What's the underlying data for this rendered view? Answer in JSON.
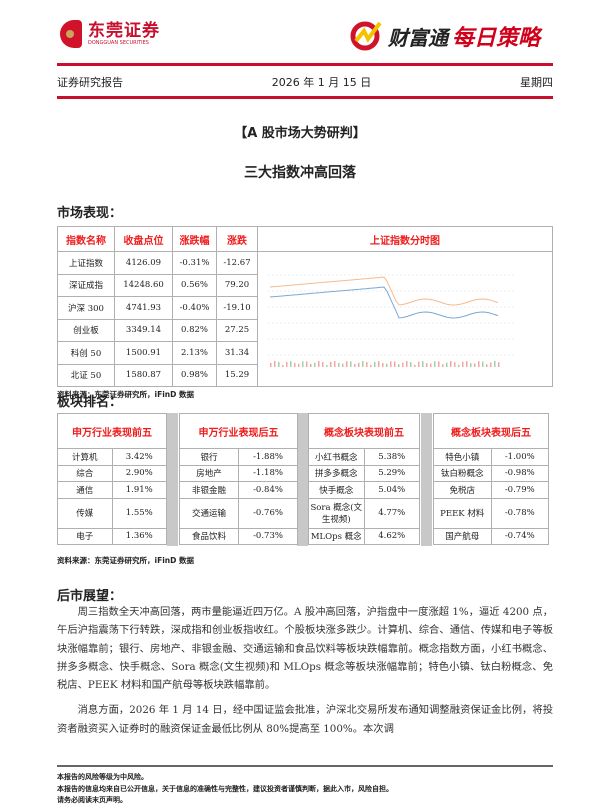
{
  "header": {
    "broker_name": "东莞证券",
    "broker_name_en": "DONGGUAN SECURITIES",
    "brand": "财富通",
    "product": "每日策略",
    "report_type": "证券研究报告",
    "date": "2026 年 1 月 15 日",
    "weekday": "星期四"
  },
  "title": "【A 股市场大势研判】",
  "subtitle": "三大指数冲高回落",
  "market": {
    "heading": "市场表现：",
    "columns": [
      "指数名称",
      "收盘点位",
      "涨跌幅",
      "涨跌"
    ],
    "chart_title": "上证指数分时图",
    "rows": [
      [
        "上证指数",
        "4126.09",
        "-0.31%",
        "-12.67"
      ],
      [
        "深证成指",
        "14248.60",
        "0.56%",
        "79.20"
      ],
      [
        "沪深 300",
        "4741.93",
        "-0.40%",
        "-19.10"
      ],
      [
        "创业板",
        "3349.14",
        "0.82%",
        "27.25"
      ],
      [
        "科创 50",
        "1500.91",
        "2.13%",
        "31.34"
      ],
      [
        "北证 50",
        "1580.87",
        "0.98%",
        "15.29"
      ]
    ],
    "source": "资料来源：东莞证券研究所，iFinD 数据"
  },
  "sectors": {
    "heading": "板块排名：",
    "source": "资料来源：东莞证券研究所，iFinD 数据",
    "tables": [
      {
        "title": "申万行业表现前五",
        "rows": [
          [
            "计算机",
            "3.42%"
          ],
          [
            "综合",
            "2.90%"
          ],
          [
            "通信",
            "1.91%"
          ],
          [
            "传媒",
            "1.55%"
          ],
          [
            "电子",
            "1.36%"
          ]
        ]
      },
      {
        "title": "申万行业表现后五",
        "rows": [
          [
            "银行",
            "-1.88%"
          ],
          [
            "房地产",
            "-1.18%"
          ],
          [
            "非银金融",
            "-0.84%"
          ],
          [
            "交通运输",
            "-0.76%"
          ],
          [
            "食品饮料",
            "-0.73%"
          ]
        ]
      },
      {
        "title": "概念板块表现前五",
        "rows": [
          [
            "小红书概念",
            "5.38%"
          ],
          [
            "拼多多概念",
            "5.29%"
          ],
          [
            "快手概念",
            "5.04%"
          ],
          [
            "Sora 概念(文生视频)",
            "4.77%"
          ],
          [
            "MLOps 概念",
            "4.62%"
          ]
        ]
      },
      {
        "title": "概念板块表现后五",
        "rows": [
          [
            "特色小镇",
            "-1.00%"
          ],
          [
            "钛白粉概念",
            "-0.98%"
          ],
          [
            "免税店",
            "-0.79%"
          ],
          [
            "PEEK 材料",
            "-0.78%"
          ],
          [
            "国产航母",
            "-0.74%"
          ]
        ]
      }
    ]
  },
  "outlook": {
    "heading": "后市展望：",
    "paragraphs": [
      "周三指数全天冲高回落，两市量能逼近四万亿。A 股冲高回落，沪指盘中一度涨超 1%，逼近 4200 点，午后沪指震荡下行转跌，深成指和创业板指收红。个股板块涨多跌少。计算机、综合、通信、传媒和电子等板块涨幅靠前；银行、房地产、非银金融、交通运输和食品饮料等板块跌幅靠前。概念指数方面，小红书概念、拼多多概念、快手概念、Sora 概念(文生视频)和 MLOps 概念等板块涨幅靠前；特色小镇、钛白粉概念、免税店、PEEK 材料和国产航母等板块跌幅靠前。",
      "消息方面，2026 年 1 月 14 日，经中国证监会批准，沪深北交易所发布通知调整融资保证金比例，将投资者融资买入证券时的融资保证金最低比例从 80%提高至 100%。本次调"
    ]
  },
  "footer": [
    "本报告的风险等级为中风险。",
    "本报告的信息均来自已公开信息，关于信息的准确性与完整性，建议投资者谨慎判断，据此入市，风险自担。",
    "请务必阅读末页声明。"
  ],
  "colors": {
    "brand_red": "#c8102e",
    "header_red": "#f01c1c"
  }
}
